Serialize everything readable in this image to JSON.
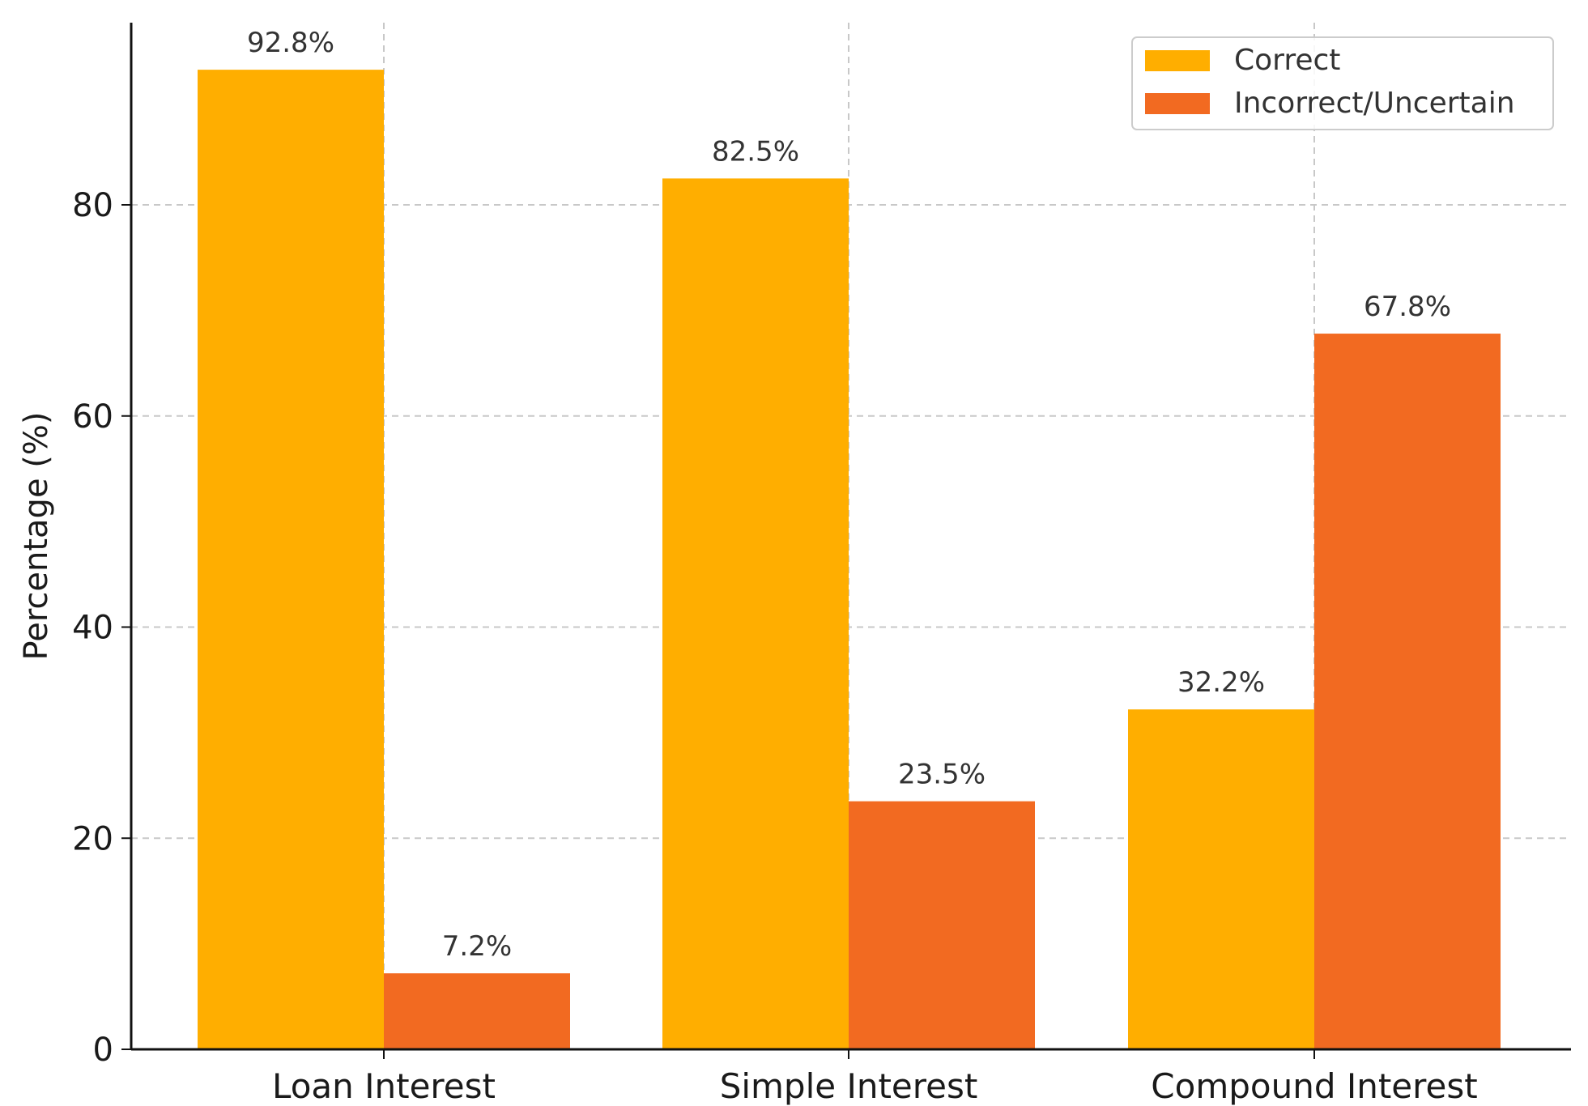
{
  "chart_data": {
    "type": "bar",
    "title": "",
    "xlabel": "",
    "ylabel": "Percentage (%)",
    "ylim": [
      0,
      95
    ],
    "yticks": [
      0,
      20,
      40,
      60,
      80
    ],
    "categories": [
      "Loan Interest",
      "Simple Interest",
      "Compound Interest"
    ],
    "series": [
      {
        "name": "Correct",
        "color": "#FFAE00",
        "values": [
          92.8,
          82.5,
          32.2
        ],
        "labels": [
          "92.8%",
          "82.5%",
          "32.2%"
        ]
      },
      {
        "name": "Incorrect/Uncertain",
        "color": "#F26A21",
        "values": [
          7.2,
          23.5,
          67.8
        ],
        "labels": [
          "7.2%",
          "23.5%",
          "67.8%"
        ]
      }
    ],
    "grid": true,
    "legend": "top-right"
  }
}
